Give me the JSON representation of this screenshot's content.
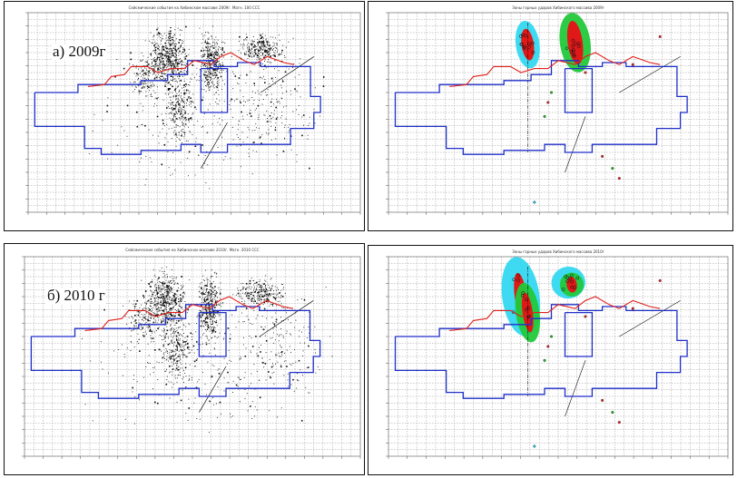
{
  "panels": [
    {
      "id": "p1",
      "label": "а) 2009г",
      "title": "Сейсмические события на Хибинском массиве 2009г. Магн. 100 ССС",
      "features": "seis",
      "seed": 11
    },
    {
      "id": "p2",
      "label": "",
      "title": "Зоны горных ударов Хибинского массива 2009г",
      "features": "zones",
      "seed": 23
    },
    {
      "id": "p3",
      "label": "б) 2010 г",
      "title": "Сейсмические события на Хибинском массиве 2010г. Магн. 2010 ССС",
      "features": "seis",
      "seed": 37
    },
    {
      "id": "p4",
      "label": "",
      "title": "Зоны горных ударов Хибинского массива 2010г",
      "features": "zones",
      "seed": 51
    }
  ],
  "colors": {
    "outline": "#1f2fc9",
    "trace": "#e0201a",
    "grid": "#9a9a9a",
    "zone_cyan": "#34d8f0",
    "zone_green": "#22c93a",
    "zone_red": "#e01818",
    "events": "#111111"
  }
}
